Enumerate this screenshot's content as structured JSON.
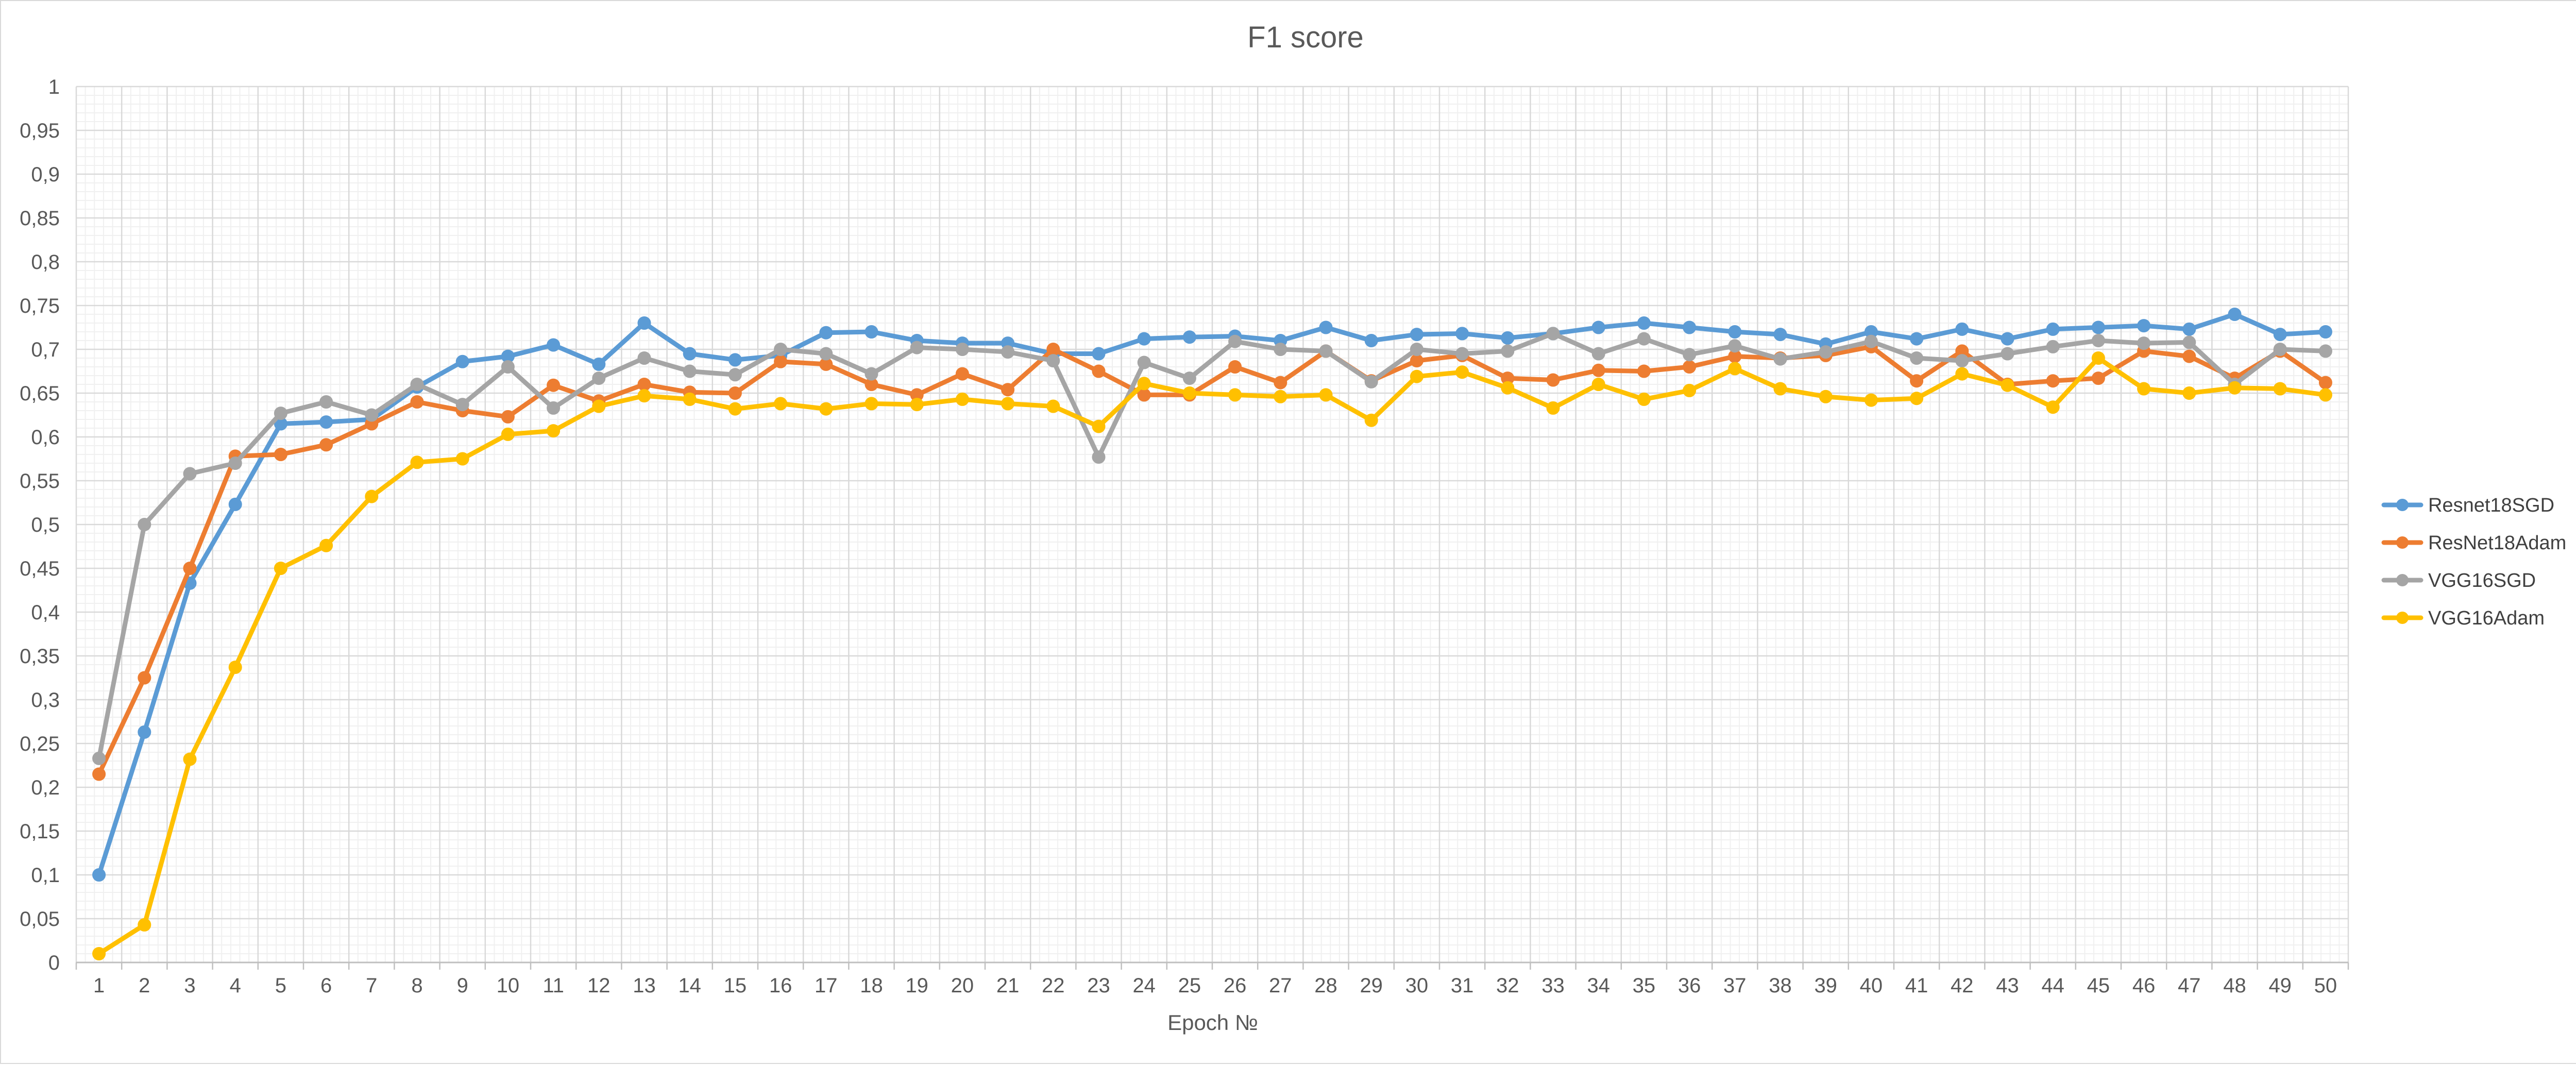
{
  "chart_data": {
    "type": "line",
    "title": "F1 score",
    "xlabel": "Epoch №",
    "ylabel": "",
    "x": [
      1,
      2,
      3,
      4,
      5,
      6,
      7,
      8,
      9,
      10,
      11,
      12,
      13,
      14,
      15,
      16,
      17,
      18,
      19,
      20,
      21,
      22,
      23,
      24,
      25,
      26,
      27,
      28,
      29,
      30,
      31,
      32,
      33,
      34,
      35,
      36,
      37,
      38,
      39,
      40,
      41,
      42,
      43,
      44,
      45,
      46,
      47,
      48,
      49,
      50
    ],
    "ylim": [
      0,
      1
    ],
    "ytick_step": 0.05,
    "ytick_labels": [
      "0",
      "0,05",
      "0,1",
      "0,15",
      "0,2",
      "0,25",
      "0,3",
      "0,35",
      "0,4",
      "0,45",
      "0,5",
      "0,55",
      "0,6",
      "0,65",
      "0,7",
      "0,75",
      "0,8",
      "0,85",
      "0,9",
      "0,95",
      "1"
    ],
    "grid": true,
    "minor_grid": true,
    "legend_position": "right",
    "series": [
      {
        "name": "Resnet18SGD",
        "color": "#5b9bd5",
        "values": [
          0.1,
          0.263,
          0.433,
          0.523,
          0.615,
          0.617,
          0.62,
          0.657,
          0.686,
          0.692,
          0.705,
          0.683,
          0.73,
          0.695,
          0.688,
          0.693,
          0.719,
          0.72,
          0.71,
          0.707,
          0.707,
          0.695,
          0.695,
          0.712,
          0.714,
          0.715,
          0.71,
          0.725,
          0.71,
          0.717,
          0.718,
          0.713,
          0.718,
          0.725,
          0.73,
          0.725,
          0.72,
          0.717,
          0.706,
          0.72,
          0.712,
          0.723,
          0.712,
          0.723,
          0.725,
          0.727,
          0.723,
          0.74,
          0.717,
          0.72
        ]
      },
      {
        "name": "ResNet18Adam",
        "color": "#ed7d31",
        "values": [
          0.215,
          0.325,
          0.45,
          0.578,
          0.58,
          0.591,
          0.615,
          0.64,
          0.63,
          0.623,
          0.659,
          0.641,
          0.66,
          0.651,
          0.65,
          0.686,
          0.683,
          0.66,
          0.648,
          0.672,
          0.654,
          0.7,
          0.675,
          0.648,
          0.648,
          0.68,
          0.662,
          0.698,
          0.664,
          0.687,
          0.693,
          0.667,
          0.665,
          0.676,
          0.675,
          0.68,
          0.692,
          0.69,
          0.693,
          0.703,
          0.664,
          0.698,
          0.66,
          0.664,
          0.667,
          0.698,
          0.692,
          0.667,
          0.698,
          0.662
        ]
      },
      {
        "name": "VGG16SGD",
        "color": "#a5a5a5",
        "values": [
          0.233,
          0.5,
          0.558,
          0.57,
          0.627,
          0.64,
          0.625,
          0.66,
          0.637,
          0.68,
          0.633,
          0.667,
          0.69,
          0.675,
          0.671,
          0.7,
          0.695,
          0.672,
          0.702,
          0.7,
          0.697,
          0.687,
          0.577,
          0.685,
          0.667,
          0.709,
          0.7,
          0.698,
          0.663,
          0.7,
          0.695,
          0.698,
          0.718,
          0.695,
          0.712,
          0.694,
          0.704,
          0.689,
          0.697,
          0.709,
          0.69,
          0.687,
          0.695,
          0.703,
          0.71,
          0.707,
          0.708,
          0.66,
          0.7,
          0.698
        ]
      },
      {
        "name": "VGG16Adam",
        "color": "#ffc000",
        "values": [
          0.01,
          0.043,
          0.232,
          0.337,
          0.45,
          0.476,
          0.532,
          0.571,
          0.575,
          0.603,
          0.607,
          0.635,
          0.647,
          0.643,
          0.632,
          0.638,
          0.632,
          0.638,
          0.637,
          0.643,
          0.638,
          0.635,
          0.612,
          0.661,
          0.65,
          0.648,
          0.646,
          0.648,
          0.619,
          0.669,
          0.674,
          0.656,
          0.633,
          0.66,
          0.643,
          0.653,
          0.678,
          0.655,
          0.646,
          0.642,
          0.644,
          0.672,
          0.659,
          0.634,
          0.69,
          0.655,
          0.65,
          0.656,
          0.655,
          0.648
        ]
      }
    ]
  }
}
